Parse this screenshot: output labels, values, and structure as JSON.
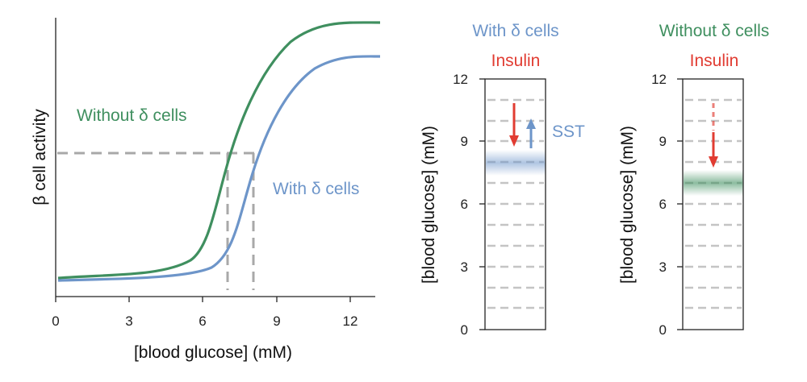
{
  "colors": {
    "with_delta": "#6d95c9",
    "without_delta": "#3f8f5f",
    "insulin": "#e13c32",
    "dashed": "#a8a8a8",
    "axis": "#222222"
  },
  "left_plot": {
    "ylabel": "β cell activity",
    "xlabel": "[blood glucose] (mM)",
    "x_ticks": [
      "0",
      "3",
      "6",
      "9",
      "12"
    ],
    "label_without": "Without δ cells",
    "label_with": "With δ cells",
    "threshold_markers_mM": [
      7,
      8
    ]
  },
  "panel_with": {
    "title": "With δ cells",
    "hormone": "Insulin",
    "modulator": "SST",
    "ylabel": "[blood glucose] (mM)",
    "y_ticks": [
      "0",
      "3",
      "6",
      "9",
      "12"
    ],
    "setpoint_mM": 8
  },
  "panel_without": {
    "title": "Without δ cells",
    "hormone": "Insulin",
    "ylabel": "[blood glucose] (mM)",
    "y_ticks": [
      "0",
      "3",
      "6",
      "9",
      "12"
    ],
    "setpoint_mM": 7
  }
}
